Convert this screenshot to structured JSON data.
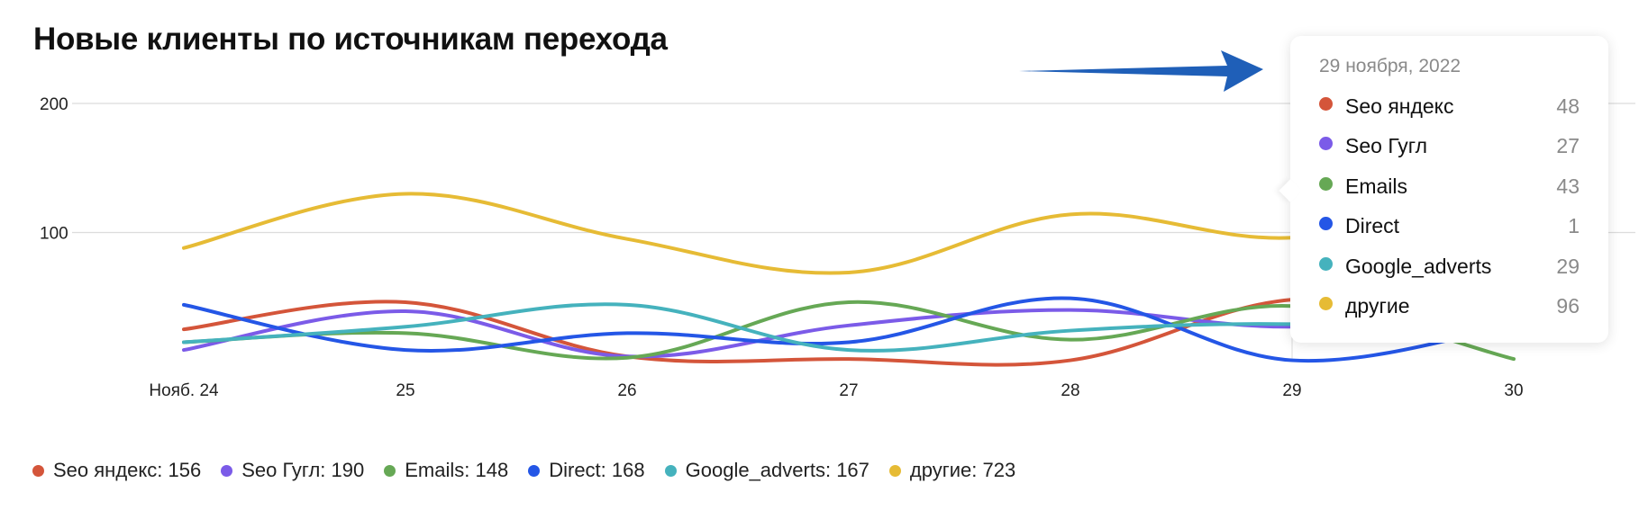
{
  "title": "Новые клиенты по источникам перехода",
  "chart_data": {
    "type": "line",
    "title": "Новые клиенты по источникам перехода",
    "xlabel": "",
    "ylabel": "",
    "categories": [
      "Нояб. 24",
      "25",
      "26",
      "27",
      "28",
      "29",
      "30"
    ],
    "yticks": [
      "100",
      "200"
    ],
    "ytick_values": [
      100,
      200
    ],
    "ylim": [
      0,
      200
    ],
    "grid": true,
    "legend_placement": "bottom-left",
    "series": [
      {
        "name": "Seo яндекс",
        "color": "#d4553a",
        "total": "156",
        "values": [
          25,
          46,
          4,
          2,
          1,
          48,
          30
        ]
      },
      {
        "name": "Seo Гугл",
        "color": "#7b5be8",
        "total": "190",
        "values": [
          9,
          39,
          4,
          28,
          40,
          27,
          43
        ]
      },
      {
        "name": "Emails",
        "color": "#66a855",
        "total": "148",
        "values": [
          15,
          22,
          3,
          46,
          17,
          43,
          2
        ]
      },
      {
        "name": "Direct",
        "color": "#2456e6",
        "total": "168",
        "values": [
          44,
          9,
          22,
          15,
          49,
          1,
          28
        ]
      },
      {
        "name": "Google_adverts",
        "color": "#45b2bd",
        "total": "167",
        "values": [
          15,
          27,
          44,
          9,
          24,
          29,
          19
        ]
      },
      {
        "name": "другие",
        "color": "#e6bb35",
        "total": "723",
        "values": [
          88,
          130,
          95,
          69,
          114,
          96,
          131
        ]
      }
    ],
    "tooltip": {
      "date": "29 ноября, 2022",
      "category_index": 5,
      "rows": [
        {
          "label": "Seo яндекс",
          "value": "48",
          "color": "#d4553a"
        },
        {
          "label": "Seo Гугл",
          "value": "27",
          "color": "#7b5be8"
        },
        {
          "label": "Emails",
          "value": "43",
          "color": "#66a855"
        },
        {
          "label": "Direct",
          "value": "1",
          "color": "#2456e6"
        },
        {
          "label": "Google_adverts",
          "value": "29",
          "color": "#45b2bd"
        },
        {
          "label": "другие",
          "value": "96",
          "color": "#e6bb35"
        }
      ]
    }
  },
  "annotation_arrow_color": "#1f5fb8"
}
